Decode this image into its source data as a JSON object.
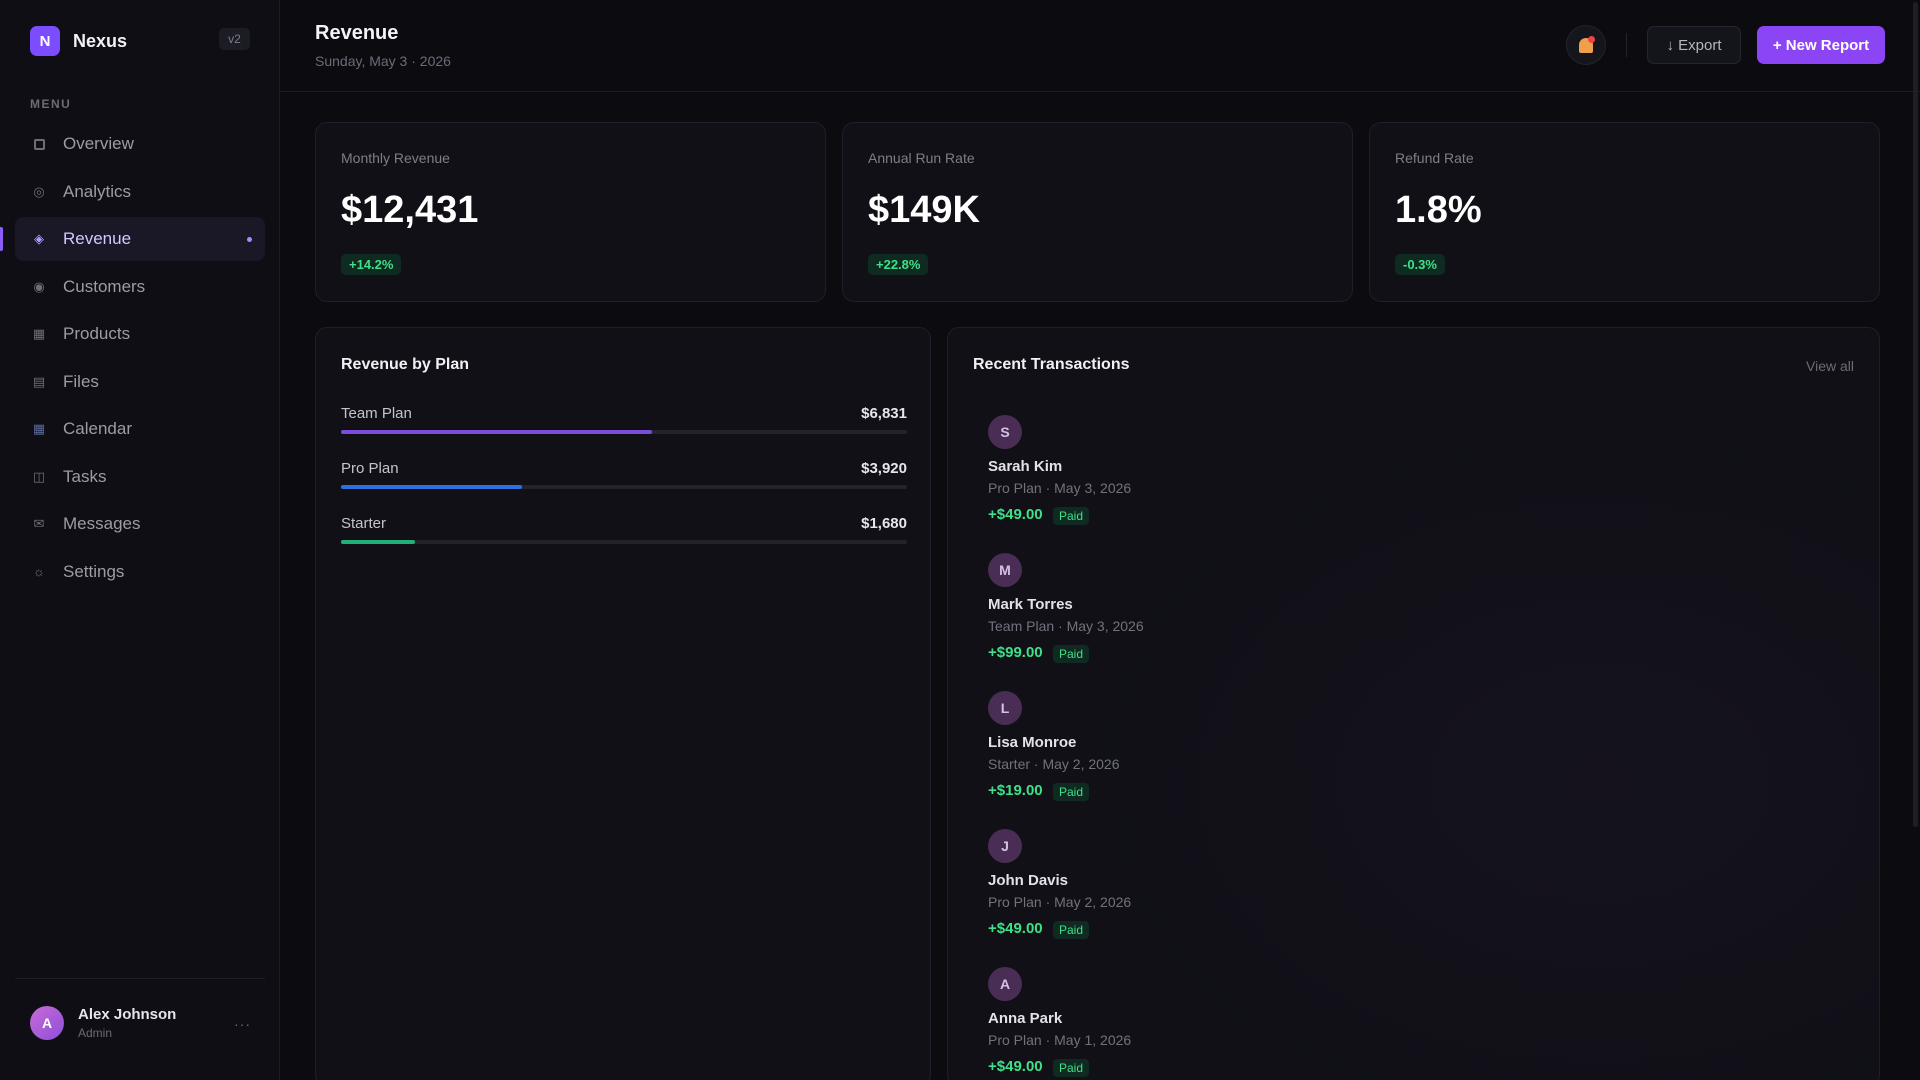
{
  "app": {
    "logo_letter": "N",
    "name": "Nexus",
    "version": "v2"
  },
  "sidebar": {
    "menu_label": "MENU",
    "items": [
      {
        "label": "Overview",
        "icon": "grid-square-icon",
        "active": false
      },
      {
        "label": "Analytics",
        "icon": "analytics-icon",
        "active": false
      },
      {
        "label": "Revenue",
        "icon": "diamond-icon",
        "active": true
      },
      {
        "label": "Customers",
        "icon": "customers-icon",
        "active": false
      },
      {
        "label": "Products",
        "icon": "products-icon",
        "active": false
      },
      {
        "label": "Files",
        "icon": "files-icon",
        "active": false
      },
      {
        "label": "Calendar",
        "icon": "calendar-icon",
        "active": false
      },
      {
        "label": "Tasks",
        "icon": "tasks-icon",
        "active": false
      },
      {
        "label": "Messages",
        "icon": "mail-icon",
        "active": false
      },
      {
        "label": "Settings",
        "icon": "settings-icon",
        "active": false
      }
    ],
    "user": {
      "initial": "A",
      "name": "Alex Johnson",
      "role": "Admin",
      "more": "···"
    }
  },
  "header": {
    "title": "Revenue",
    "date": "Sunday, May 3 · 2026",
    "export_label": "↓ Export",
    "new_report_label": "+ New Report"
  },
  "kpis": [
    {
      "label": "Monthly Revenue",
      "value": "$12,431",
      "change": "+14.2%"
    },
    {
      "label": "Annual Run Rate",
      "value": "$149K",
      "change": "+22.8%"
    },
    {
      "label": "Refund Rate",
      "value": "1.8%",
      "change": "-0.3%"
    }
  ],
  "revenue_by_plan": {
    "title": "Revenue by Plan",
    "plans": [
      {
        "name": "Team Plan",
        "amount": "$6,831",
        "share": 0.55,
        "color": "#7c4ddb"
      },
      {
        "name": "Pro Plan",
        "amount": "$3,920",
        "share": 0.32,
        "color": "#2f6fe0"
      },
      {
        "name": "Starter",
        "amount": "$1,680",
        "share": 0.13,
        "color": "#22b07a"
      }
    ]
  },
  "transactions": {
    "title": "Recent Transactions",
    "view_all": "View all",
    "items": [
      {
        "initial": "S",
        "name": "Sarah Kim",
        "meta": "Pro Plan · May 3, 2026",
        "amount": "+$49.00",
        "status": "Paid"
      },
      {
        "initial": "M",
        "name": "Mark Torres",
        "meta": "Team Plan · May 3, 2026",
        "amount": "+$99.00",
        "status": "Paid"
      },
      {
        "initial": "L",
        "name": "Lisa Monroe",
        "meta": "Starter · May 2, 2026",
        "amount": "+$19.00",
        "status": "Paid"
      },
      {
        "initial": "J",
        "name": "John Davis",
        "meta": "Pro Plan · May 2, 2026",
        "amount": "+$49.00",
        "status": "Paid"
      },
      {
        "initial": "A",
        "name": "Anna Park",
        "meta": "Pro Plan · May 1, 2026",
        "amount": "+$49.00",
        "status": "Paid"
      }
    ]
  },
  "colors": {
    "accent": "#8b45f5",
    "positive": "#3ee088",
    "background": "#0b0b10"
  }
}
